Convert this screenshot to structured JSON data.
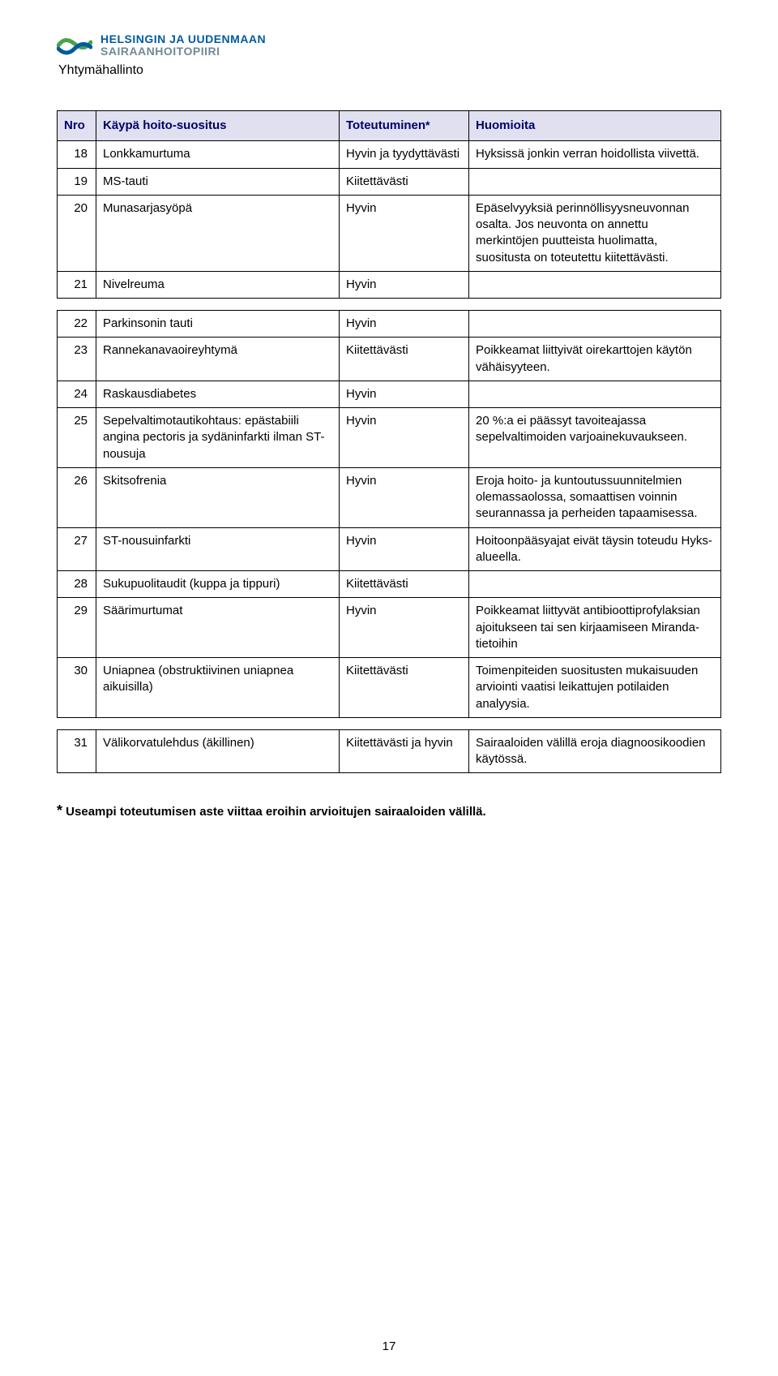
{
  "org": {
    "line1": "HELSINGIN JA UUDENMAAN",
    "line2": "SAIRAANHOITOPIIRI",
    "doc_label": "Yhtymähallinto"
  },
  "table": {
    "headers": {
      "nro": "Nro",
      "suositus": "Käypä hoito-suositus",
      "toteutuminen": "Toteutuminen",
      "asterisk": "*",
      "huomioita": "Huomioita"
    },
    "rowsA": [
      {
        "n": "18",
        "s": "Lonkkamurtuma",
        "t": "Hyvin ja tyydyttävästi",
        "h": "Hyksissä jonkin verran hoidollista viivettä."
      },
      {
        "n": "19",
        "s": "MS-tauti",
        "t": "Kiitettävästi",
        "h": ""
      },
      {
        "n": "20",
        "s": "Munasarjasyöpä",
        "t": "Hyvin",
        "h": "Epäselvyyksiä perinnöllisyysneuvonnan osalta. Jos neuvonta on annettu merkintöjen puutteista huolimatta, suositusta on toteutettu kiitettävästi."
      },
      {
        "n": "21",
        "s": "Nivelreuma",
        "t": "Hyvin",
        "h": ""
      }
    ],
    "rowsB": [
      {
        "n": "22",
        "s": "Parkinsonin tauti",
        "t": "Hyvin",
        "h": ""
      },
      {
        "n": "23",
        "s": "Rannekanavaoireyhtymä",
        "t": "Kiitettävästi",
        "h": "Poikkeamat liittyivät oirekarttojen käytön vähäisyyteen."
      },
      {
        "n": "24",
        "s": "Raskausdiabetes",
        "t": "Hyvin",
        "h": ""
      },
      {
        "n": "25",
        "s": "Sepelvaltimotautikohtaus: epästabiili angina pectoris ja sydäninfarkti ilman ST-nousuja",
        "t": "Hyvin",
        "h": "20 %:a ei päässyt tavoiteajassa sepelvaltimoiden varjoainekuvaukseen."
      },
      {
        "n": "26",
        "s": "Skitsofrenia",
        "t": "Hyvin",
        "h": "Eroja hoito- ja kuntoutussuunnitelmien olemassaolossa, somaattisen voinnin seurannassa ja perheiden tapaamisessa."
      },
      {
        "n": "27",
        "s": "ST-nousuinfarkti",
        "t": "Hyvin",
        "h": "Hoitoonpääsyajat eivät täysin toteudu Hyks-alueella."
      },
      {
        "n": "28",
        "s": "Sukupuolitaudit (kuppa ja tippuri)",
        "t": "Kiitettävästi",
        "h": ""
      },
      {
        "n": "29",
        "s": "Säärimurtumat",
        "t": "Hyvin",
        "h": "Poikkeamat liittyvät antibioottiprofylaksian ajoitukseen tai sen kirjaamiseen Miranda-tietoihin"
      },
      {
        "n": "30",
        "s": "Uniapnea (obstruktiivinen uniapnea aikuisilla)",
        "t": "Kiitettävästi",
        "h": "Toimenpiteiden suositusten mukaisuuden arviointi vaatisi leikattujen potilaiden analyysia."
      }
    ],
    "rowsC": [
      {
        "n": "31",
        "s": "Välikorvatulehdus (äkillinen)",
        "t": "Kiitettävästi ja hyvin",
        "h": "Sairaaloiden välillä eroja diagnoosikoodien käytössä."
      }
    ]
  },
  "footnote": {
    "star": "*",
    "text": " Useampi toteutumisen aste viittaa eroihin arvioitujen sairaaloiden välillä."
  },
  "page_number": "17"
}
